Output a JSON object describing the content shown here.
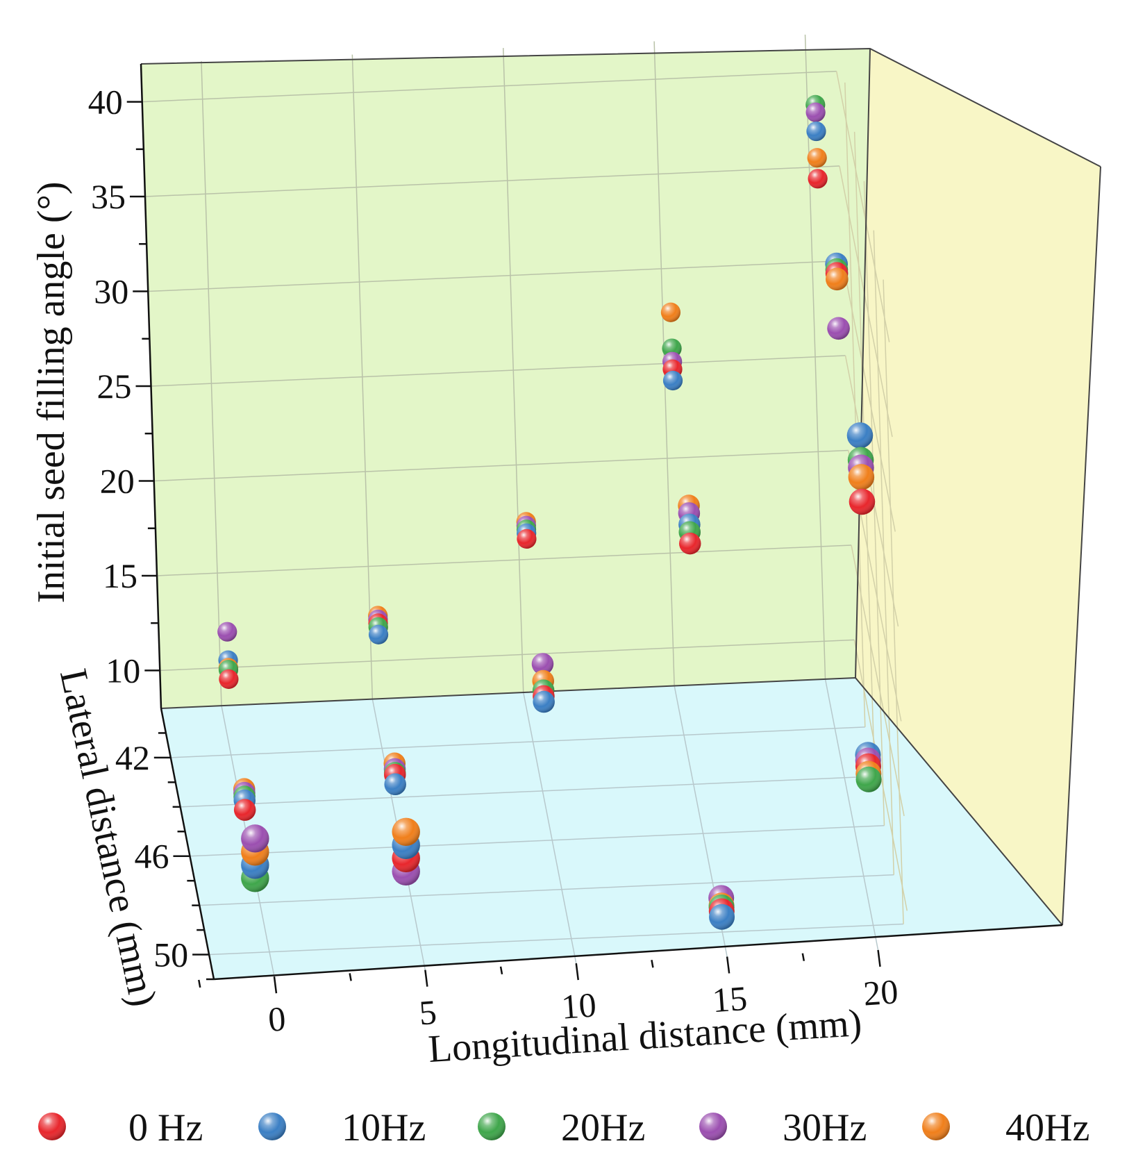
{
  "chart_data": {
    "type": "scatter3d",
    "xlabel": "Longitudinal distance (mm)",
    "ylabel": "Lateral distance (mm)",
    "zlabel": "Initial seed filling angle (°)",
    "x_ticks": [
      "0",
      "5",
      "10",
      "15",
      "20"
    ],
    "y_ticks": [
      "42",
      "46",
      "50"
    ],
    "z_ticks": [
      "10",
      "15",
      "20",
      "25",
      "30",
      "35",
      "40"
    ],
    "xlim": [
      -2,
      21
    ],
    "ylim": [
      40,
      51
    ],
    "zlim": [
      8,
      42
    ],
    "colors": {
      "back_wall": "#e3f6c8",
      "side_wall": "#f8f6c6",
      "floor": "#d9f8fb"
    },
    "legend_position": "bottom",
    "series": [
      {
        "name": "0 Hz",
        "color": "#e8262c"
      },
      {
        "name": "10Hz",
        "color": "#3b7fc4"
      },
      {
        "name": "20Hz",
        "color": "#3fa64b"
      },
      {
        "name": "30Hz",
        "color": "#9b4fb0"
      },
      {
        "name": "40Hz",
        "color": "#f07f1b"
      }
    ],
    "points": [
      {
        "x": 0,
        "y": 42,
        "values": {
          "0 Hz": 12,
          "10Hz": 13,
          "20Hz": 12.5,
          "30Hz": 14.5,
          "40Hz": 12.6
        }
      },
      {
        "x": 0,
        "y": 45,
        "values": {
          "0 Hz": 9,
          "10Hz": 9.5,
          "20Hz": 9.7,
          "30Hz": 9.9,
          "40Hz": 10.1
        }
      },
      {
        "x": 5,
        "y": 42,
        "values": {
          "0 Hz": 14.6,
          "10Hz": 14,
          "20Hz": 14.4,
          "30Hz": 14.8,
          "40Hz": 15
        }
      },
      {
        "x": 5,
        "y": 45,
        "values": {
          "0 Hz": 10.5,
          "10Hz": 10,
          "20Hz": 10.6,
          "30Hz": 10.8,
          "40Hz": 11.1
        }
      },
      {
        "x": 10,
        "y": 42,
        "values": {
          "0 Hz": 18.7,
          "10Hz": 19,
          "20Hz": 19.2,
          "30Hz": 19.4,
          "40Hz": 19.6
        }
      },
      {
        "x": 10,
        "y": 45,
        "values": {
          "0 Hz": 14.3,
          "10Hz": 14,
          "20Hz": 14.6,
          "30Hz": 16,
          "40Hz": 15.1
        }
      },
      {
        "x": 15,
        "y": 42,
        "values": {
          "0 Hz": 27.3,
          "10Hz": 26.7,
          "20Hz": 28.4,
          "30Hz": 27.7,
          "40Hz": 30.3
        }
      },
      {
        "x": 15,
        "y": 45,
        "values": {
          "0 Hz": 22,
          "10Hz": 23,
          "20Hz": 22.6,
          "30Hz": 23.6,
          "40Hz": 24
        }
      },
      {
        "x": 15,
        "y": 50,
        "values": {
          "0 Hz": 9.1,
          "10Hz": 8.8,
          "20Hz": 9.3,
          "30Hz": 9.8,
          "40Hz": 9.4
        }
      },
      {
        "x": 20,
        "y": 42,
        "values": {
          "0 Hz": 37,
          "10Hz": 39.5,
          "20Hz": 40.9,
          "30Hz": 40.5,
          "40Hz": 38.1
        }
      },
      {
        "x": 20,
        "y": 46,
        "values": {
          "0 Hz": 37.2,
          "10Hz": 37.7,
          "20Hz": 37.4,
          "30Hz": 34.3,
          "40Hz": 36.9
        }
      },
      {
        "x": 20,
        "y": 50,
        "values": {
          "0 Hz": 16.4,
          "10Hz": 17,
          "20Hz": 15.7,
          "30Hz": 16.7,
          "40Hz": 16
        }
      },
      {
        "x": 20,
        "y": 50.5,
        "values": {
          "0 Hz": 31,
          "10Hz": 34.5,
          "20Hz": 33.2,
          "30Hz": 32.8,
          "40Hz": 32.3
        }
      },
      {
        "x": 0,
        "y": 47,
        "z_floor": true,
        "order": [
          "20Hz",
          "10Hz",
          "40Hz",
          "30Hz"
        ]
      },
      {
        "x": 5,
        "y": 47,
        "z_floor": true,
        "order": [
          "30Hz",
          "0 Hz",
          "10Hz",
          "40Hz"
        ]
      }
    ]
  }
}
